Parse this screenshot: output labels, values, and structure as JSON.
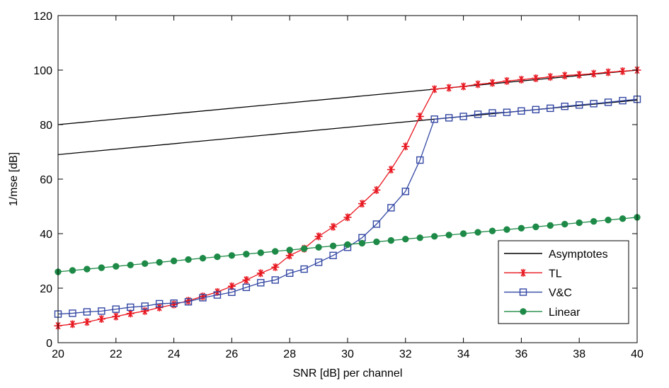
{
  "chart_data": {
    "type": "line",
    "xlabel": "SNR [dB] per channel",
    "ylabel": "1/mse [dB]",
    "xlim": [
      20,
      40
    ],
    "ylim": [
      0,
      120
    ],
    "xticks": [
      20,
      22,
      24,
      26,
      28,
      30,
      32,
      34,
      36,
      38,
      40
    ],
    "yticks": [
      0,
      20,
      40,
      60,
      80,
      100,
      120
    ],
    "grid": false,
    "legend_position": "bottom-right",
    "series": [
      {
        "name": "Asymptotes",
        "color": "#000000",
        "marker": "none",
        "lines": [
          {
            "x": [
              20,
              40
            ],
            "y": [
              80,
              100
            ]
          },
          {
            "x": [
              20,
              40
            ],
            "y": [
              69,
              89
            ]
          }
        ]
      },
      {
        "name": "TL",
        "color": "#e8161f",
        "marker": "asterisk",
        "x": [
          20,
          20.5,
          21,
          21.5,
          22,
          22.5,
          23,
          23.5,
          24,
          24.5,
          25,
          25.5,
          26,
          26.5,
          27,
          27.5,
          28,
          28.5,
          29,
          29.5,
          30,
          30.5,
          31,
          31.5,
          32,
          32.5,
          33,
          33.5,
          34,
          34.5,
          35,
          35.5,
          36,
          36.5,
          37,
          37.5,
          38,
          38.5,
          39,
          39.5,
          40
        ],
        "y": [
          6.2,
          6.8,
          7.6,
          8.7,
          9.6,
          10.7,
          11.6,
          12.9,
          14.0,
          15.4,
          17.0,
          18.6,
          20.7,
          23.0,
          25.5,
          27.7,
          32.0,
          34.5,
          39.0,
          42.5,
          46.0,
          51.0,
          56.0,
          63.5,
          72.0,
          83.0,
          93.0,
          93.5,
          94.0,
          94.8,
          95.3,
          96.0,
          96.5,
          97.0,
          97.5,
          98.0,
          98.3,
          98.7,
          99.2,
          99.6,
          100.0
        ]
      },
      {
        "name": "V&C",
        "color": "#3347a3",
        "marker": "square",
        "x": [
          20,
          20.5,
          21,
          21.5,
          22,
          22.5,
          23,
          23.5,
          24,
          24.5,
          25,
          25.5,
          26,
          26.5,
          27,
          27.5,
          28,
          28.5,
          29,
          29.5,
          30,
          30.5,
          31,
          31.5,
          32,
          32.5,
          33,
          33.5,
          34,
          34.5,
          35,
          35.5,
          36,
          36.5,
          37,
          37.5,
          38,
          38.5,
          39,
          39.5,
          40
        ],
        "y": [
          10.5,
          10.8,
          11.3,
          11.6,
          12.3,
          13.0,
          13.4,
          14.3,
          14.5,
          15.0,
          16.5,
          17.5,
          18.5,
          20.3,
          22.0,
          23.0,
          25.5,
          27.0,
          29.5,
          32.0,
          35.0,
          38.5,
          43.5,
          49.5,
          55.5,
          67.0,
          82.0,
          82.5,
          83.0,
          83.8,
          84.3,
          84.5,
          85.0,
          85.5,
          86.0,
          86.7,
          87.2,
          87.7,
          88.2,
          88.8,
          89.3
        ]
      },
      {
        "name": "Linear",
        "color": "#1e8a47",
        "marker": "circle",
        "x": [
          20,
          20.5,
          21,
          21.5,
          22,
          22.5,
          23,
          23.5,
          24,
          24.5,
          25,
          25.5,
          26,
          26.5,
          27,
          27.5,
          28,
          28.5,
          29,
          29.5,
          30,
          30.5,
          31,
          31.5,
          32,
          32.5,
          33,
          33.5,
          34,
          34.5,
          35,
          35.5,
          36,
          36.5,
          37,
          37.5,
          38,
          38.5,
          39,
          39.5,
          40
        ],
        "y": [
          26.0,
          26.5,
          27.0,
          27.5,
          28.0,
          28.5,
          29.0,
          29.5,
          30.0,
          30.5,
          31.0,
          31.5,
          32.0,
          32.5,
          33.0,
          33.5,
          34.0,
          34.5,
          35.0,
          35.5,
          36.0,
          36.5,
          37.0,
          37.5,
          38.0,
          38.5,
          39.0,
          39.5,
          40.0,
          40.5,
          41.0,
          41.5,
          42.0,
          42.5,
          43.0,
          43.5,
          44.0,
          44.5,
          45.0,
          45.5,
          46.0
        ]
      }
    ]
  }
}
